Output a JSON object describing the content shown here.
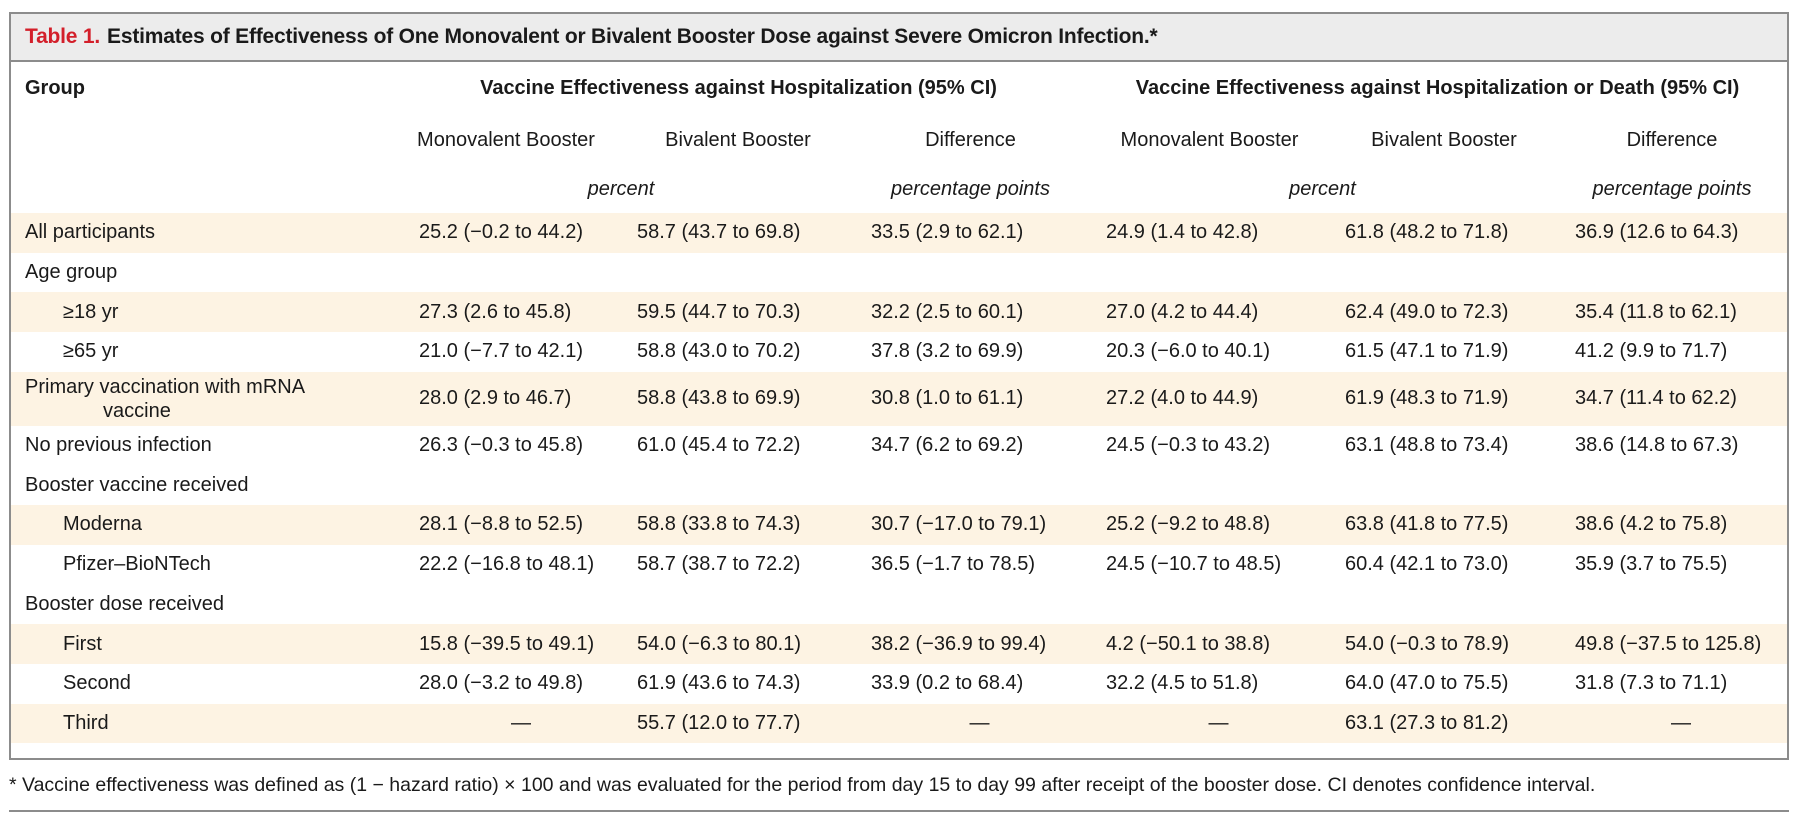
{
  "title": {
    "label": "Table 1.",
    "text": "Estimates of Effectiveness of One Monovalent or Bivalent Booster Dose against Severe Omicron Infection.*"
  },
  "header": {
    "group": "Group",
    "hosp_span": "Vaccine Effectiveness against Hospitalization (95% CI)",
    "hd_span": "Vaccine Effectiveness against Hospitalization or Death (95% CI)",
    "sub": [
      "Monovalent Booster",
      "Bivalent Booster",
      "Difference",
      "Monovalent Booster",
      "Bivalent Booster",
      "Difference"
    ],
    "unit_percent": "percent",
    "unit_pp": "percentage points"
  },
  "rows": [
    {
      "label": "All participants",
      "values": [
        "25.2 (−0.2 to 44.2)",
        "58.7 (43.7 to 69.8)",
        "33.5 (2.9 to 62.1)",
        "24.9 (1.4 to 42.8)",
        "61.8 (48.2 to 71.8)",
        "36.9 (12.6 to 64.3)"
      ]
    },
    {
      "label": "Age group",
      "values": [
        "",
        "",
        "",
        "",
        "",
        ""
      ]
    },
    {
      "label": "≥18 yr",
      "values": [
        "27.3 (2.6 to 45.8)",
        "59.5 (44.7 to 70.3)",
        "32.2 (2.5 to 60.1)",
        "27.0 (4.2 to 44.4)",
        "62.4 (49.0 to 72.3)",
        "35.4 (11.8 to 62.1)"
      ]
    },
    {
      "label": "≥65 yr",
      "values": [
        "21.0 (−7.7 to 42.1)",
        "58.8 (43.0 to 70.2)",
        "37.8 (3.2 to 69.9)",
        "20.3 (−6.0 to 40.1)",
        "61.5 (47.1 to 71.9)",
        "41.2 (9.9 to 71.7)"
      ]
    },
    {
      "label": "Primary vaccination with mRNA",
      "label2": "vaccine",
      "values": [
        "28.0 (2.9 to 46.7)",
        "58.8 (43.8 to 69.9)",
        "30.8 (1.0 to 61.1)",
        "27.2 (4.0 to 44.9)",
        "61.9 (48.3 to 71.9)",
        "34.7 (11.4 to 62.2)"
      ]
    },
    {
      "label": "No previous infection",
      "values": [
        "26.3 (−0.3 to 45.8)",
        "61.0 (45.4 to 72.2)",
        "34.7 (6.2 to 69.2)",
        "24.5 (−0.3 to 43.2)",
        "63.1 (48.8 to 73.4)",
        "38.6 (14.8 to 67.3)"
      ]
    },
    {
      "label": "Booster vaccine received",
      "values": [
        "",
        "",
        "",
        "",
        "",
        ""
      ]
    },
    {
      "label": "Moderna",
      "values": [
        "28.1 (−8.8 to 52.5)",
        "58.8 (33.8 to 74.3)",
        "30.7 (−17.0 to 79.1)",
        "25.2 (−9.2 to 48.8)",
        "63.8 (41.8 to 77.5)",
        "38.6 (4.2 to 75.8)"
      ]
    },
    {
      "label": "Pfizer–BioNTech",
      "values": [
        "22.2 (−16.8 to 48.1)",
        "58.7 (38.7 to 72.2)",
        "36.5 (−1.7 to 78.5)",
        "24.5 (−10.7 to 48.5)",
        "60.4 (42.1 to 73.0)",
        "35.9 (3.7 to 75.5)"
      ]
    },
    {
      "label": "Booster dose received",
      "values": [
        "",
        "",
        "",
        "",
        "",
        ""
      ]
    },
    {
      "label": "First",
      "values": [
        "15.8 (−39.5 to 49.1)",
        "54.0 (−6.3 to 80.1)",
        "38.2 (−36.9 to 99.4)",
        "4.2 (−50.1 to 38.8)",
        "54.0 (−0.3 to 78.9)",
        "49.8 (−37.5 to 125.8)"
      ]
    },
    {
      "label": "Second",
      "values": [
        "28.0 (−3.2 to 49.8)",
        "61.9 (43.6 to 74.3)",
        "33.9 (0.2 to 68.4)",
        "32.2 (4.5 to 51.8)",
        "64.0 (47.0 to 75.5)",
        "31.8 (7.3 to 71.1)"
      ]
    },
    {
      "label": "Third",
      "values": [
        "—",
        "55.7 (12.0 to 77.7)",
        "—",
        "—",
        "63.1 (27.3 to 81.2)",
        "—"
      ]
    }
  ],
  "footnote": "* Vaccine effectiveness was defined as (1 − hazard ratio) × 100 and was evaluated for the period from day 15 to day 99 after receipt of the booster dose. CI denotes confidence interval."
}
